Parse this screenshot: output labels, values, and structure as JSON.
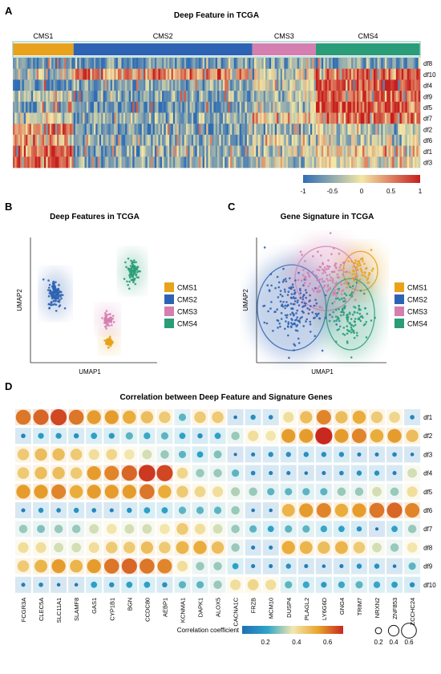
{
  "chart_data": [
    {
      "panel_label": "A",
      "type": "heatmap",
      "title": "Deep Feature in TCGA",
      "groups": [
        {
          "name": "CMS1",
          "color": "#E8A21B"
        },
        {
          "name": "CMS2",
          "color": "#2E63B3"
        },
        {
          "name": "CMS3",
          "color": "#D47FB0"
        },
        {
          "name": "CMS4",
          "color": "#2A9D78"
        }
      ],
      "rows": [
        "df8",
        "df10",
        "df4",
        "df9",
        "df5",
        "df7",
        "df2",
        "df6",
        "df1",
        "df3"
      ],
      "group_means": {
        "CMS1": [
          -0.6,
          -0.4,
          -0.8,
          -0.3,
          -0.7,
          -0.2,
          0.6,
          0.3,
          0.7,
          0.5
        ],
        "CMS2": [
          -0.7,
          0.55,
          -0.6,
          -0.7,
          -0.7,
          -0.5,
          -0.6,
          -0.5,
          -0.5,
          -0.5
        ],
        "CMS3": [
          -0.4,
          -0.1,
          -0.2,
          -0.3,
          -0.4,
          0.1,
          -0.5,
          0.0,
          -0.2,
          -0.3
        ],
        "CMS4": [
          -0.6,
          0.6,
          0.8,
          0.7,
          0.8,
          0.5,
          -0.3,
          -0.2,
          0.1,
          0.0
        ]
      },
      "colorbar": {
        "ticks": [
          "-1",
          "-0.5",
          "0",
          "0.5",
          "1"
        ],
        "range": [
          -1,
          1
        ],
        "colors": [
          "#2F6DB5",
          "#F2E7A6",
          "#C81E1E"
        ]
      }
    },
    {
      "panel_label": "B",
      "type": "scatter",
      "title": "Deep Features in TCGA",
      "xlabel": "UMAP1",
      "ylabel": "UMAP2",
      "legend": [
        "CMS1",
        "CMS2",
        "CMS3",
        "CMS4"
      ],
      "clusters": [
        {
          "name": "CMS1",
          "center": [
            3.0,
            -7.0
          ],
          "spread": [
            0.3,
            0.5
          ]
        },
        {
          "name": "CMS2",
          "center": [
            -4.0,
            0.5
          ],
          "spread": [
            0.6,
            1.4
          ]
        },
        {
          "name": "CMS3",
          "center": [
            2.8,
            -3.5
          ],
          "spread": [
            0.4,
            0.7
          ]
        },
        {
          "name": "CMS4",
          "center": [
            6.0,
            4.0
          ],
          "spread": [
            0.5,
            1.2
          ]
        }
      ]
    },
    {
      "panel_label": "C",
      "type": "scatter",
      "title": "Gene Signature in TCGA",
      "xlabel": "UMAP1",
      "ylabel": "UMAP2",
      "legend": [
        "CMS1",
        "CMS2",
        "CMS3",
        "CMS4"
      ],
      "clusters": [
        {
          "name": "CMS1",
          "center": [
            3.8,
            2.6
          ],
          "spread": [
            1.0,
            1.1
          ]
        },
        {
          "name": "CMS2",
          "center": [
            -3.8,
            -1.3
          ],
          "spread": [
            2.0,
            2.4
          ]
        },
        {
          "name": "CMS3",
          "center": [
            0.0,
            1.8
          ],
          "spread": [
            1.8,
            1.8
          ]
        },
        {
          "name": "CMS4",
          "center": [
            2.7,
            -2.0
          ],
          "spread": [
            1.4,
            2.0
          ]
        }
      ]
    },
    {
      "panel_label": "D",
      "type": "bubble",
      "title": "Correlation between Deep Feature and Signature Genes",
      "genes": [
        "FCGR3A",
        "CLEC5A",
        "SLC11A1",
        "SLAMF8",
        "GAS1",
        "CYP1B1",
        "BGN",
        "CCDC80",
        "AEBP1",
        "KCNMA1",
        "DAPK1",
        "ALOX5",
        "CACNA1C",
        "FRZB",
        "MCM10",
        "DUSP4",
        "PLAGL2",
        "LY6G6D",
        "GNG4",
        "TRIM7",
        "NRXN2",
        "ZNF853",
        "ZCCHC24"
      ],
      "features": [
        "df1",
        "df2",
        "df3",
        "df4",
        "df5",
        "df6",
        "df7",
        "df8",
        "df9",
        "df10"
      ],
      "values": [
        [
          0.6,
          0.62,
          0.66,
          0.6,
          0.55,
          0.55,
          0.52,
          0.48,
          0.45,
          0.25,
          0.45,
          0.45,
          0.08,
          0.15,
          0.12,
          0.4,
          0.48,
          0.58,
          0.48,
          0.52,
          0.45,
          0.42,
          0.12
        ],
        [
          0.12,
          0.18,
          0.18,
          0.15,
          0.2,
          0.18,
          0.25,
          0.22,
          0.25,
          0.2,
          0.15,
          0.2,
          0.3,
          0.4,
          0.38,
          0.55,
          0.55,
          0.7,
          0.55,
          0.58,
          0.52,
          0.55,
          0.48
        ],
        [
          0.45,
          0.48,
          0.48,
          0.45,
          0.4,
          0.42,
          0.38,
          0.35,
          0.3,
          0.25,
          0.2,
          0.28,
          0.06,
          0.1,
          0.15,
          0.15,
          0.15,
          0.15,
          0.15,
          0.1,
          0.1,
          0.12,
          0.08
        ],
        [
          0.45,
          0.48,
          0.48,
          0.45,
          0.55,
          0.58,
          0.62,
          0.68,
          0.66,
          0.42,
          0.3,
          0.3,
          0.25,
          0.12,
          0.1,
          0.1,
          0.08,
          0.1,
          0.12,
          0.15,
          0.15,
          0.1,
          0.35
        ],
        [
          0.55,
          0.55,
          0.58,
          0.52,
          0.55,
          0.55,
          0.55,
          0.6,
          0.52,
          0.45,
          0.42,
          0.4,
          0.32,
          0.3,
          0.25,
          0.25,
          0.25,
          0.25,
          0.3,
          0.3,
          0.35,
          0.3,
          0.4
        ],
        [
          0.1,
          0.15,
          0.12,
          0.15,
          0.12,
          0.1,
          0.15,
          0.2,
          0.2,
          0.25,
          0.25,
          0.25,
          0.3,
          0.08,
          0.08,
          0.5,
          0.55,
          0.58,
          0.52,
          0.55,
          0.6,
          0.62,
          0.58
        ],
        [
          0.3,
          0.28,
          0.3,
          0.3,
          0.35,
          0.38,
          0.35,
          0.35,
          0.38,
          0.45,
          0.4,
          0.35,
          0.3,
          0.25,
          0.2,
          0.25,
          0.25,
          0.22,
          0.2,
          0.15,
          0.06,
          0.2,
          0.3
        ],
        [
          0.4,
          0.4,
          0.35,
          0.35,
          0.4,
          0.45,
          0.45,
          0.48,
          0.45,
          0.5,
          0.52,
          0.48,
          0.3,
          0.1,
          0.1,
          0.52,
          0.5,
          0.48,
          0.5,
          0.45,
          0.35,
          0.3,
          0.38
        ],
        [
          0.45,
          0.5,
          0.55,
          0.5,
          0.55,
          0.6,
          0.62,
          0.6,
          0.58,
          0.4,
          0.3,
          0.3,
          0.2,
          0.1,
          0.1,
          0.15,
          0.1,
          0.08,
          0.1,
          0.15,
          0.15,
          0.08,
          0.25
        ],
        [
          0.1,
          0.12,
          0.08,
          0.08,
          0.2,
          0.15,
          0.2,
          0.2,
          0.15,
          0.25,
          0.25,
          0.3,
          0.4,
          0.42,
          0.4,
          0.25,
          0.22,
          0.18,
          0.22,
          0.25,
          0.22,
          0.2,
          0.15
        ]
      ],
      "colorbar": {
        "label": "Correlation coefficient",
        "ticks": [
          "0.2",
          "0.4",
          "0.6"
        ],
        "range": [
          0.05,
          0.7
        ],
        "colors": [
          "#1F6FB4",
          "#2FA4C8",
          "#F2E8B0",
          "#E9A62E",
          "#C8281E"
        ]
      },
      "size_legend": [
        "0.2",
        "0.4",
        "0.6"
      ]
    }
  ]
}
